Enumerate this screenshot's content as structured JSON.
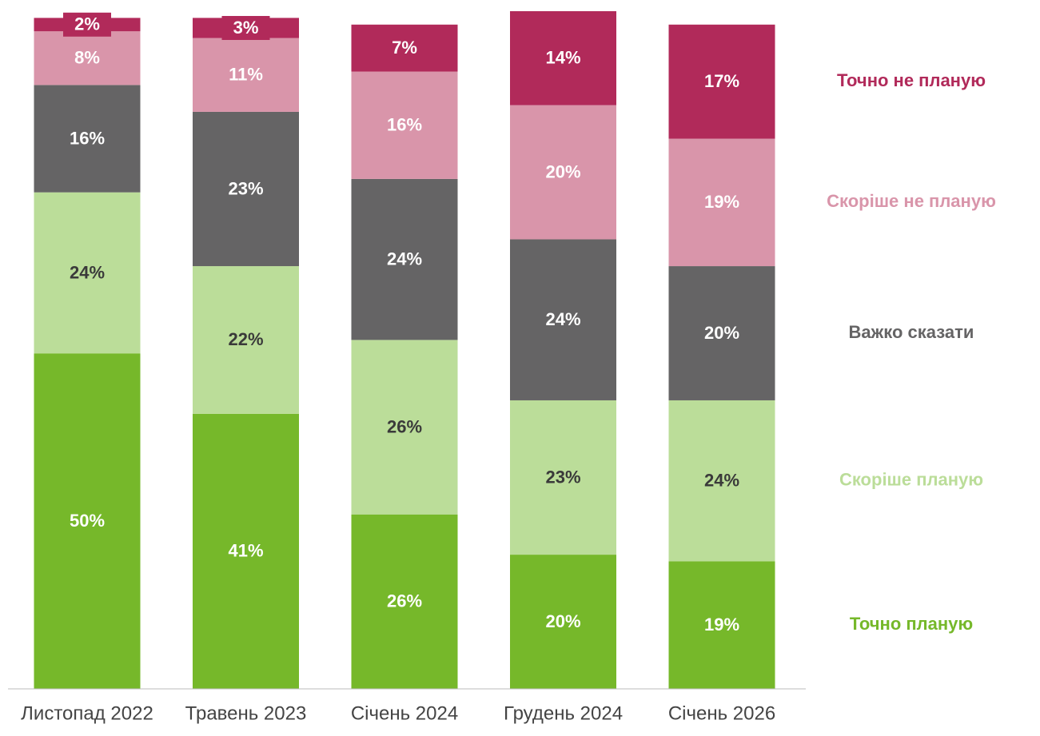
{
  "chart_data": {
    "type": "stacked_bar",
    "categories": [
      "Листопад 2022",
      "Травень 2023",
      "Січень 2024",
      "Грудень 2024",
      "Січень 2026"
    ],
    "series": [
      {
        "name": "Точно планую",
        "color": "#76b82a",
        "label_color": "#ffffff",
        "values": [
          50,
          41,
          26,
          20,
          19
        ],
        "value_labels": [
          "50%",
          "41%",
          "26%",
          "20%",
          "19%"
        ]
      },
      {
        "name": "Скоріше планую",
        "color": "#bbdd99",
        "label_color": "#3a3a3a",
        "values": [
          24,
          22,
          26,
          23,
          24
        ],
        "value_labels": [
          "24%",
          "22%",
          "26%",
          "23%",
          "24%"
        ]
      },
      {
        "name": "Важко сказати",
        "color": "#656465",
        "label_color": "#ffffff",
        "values": [
          16,
          23,
          24,
          24,
          20
        ],
        "value_labels": [
          "16%",
          "23%",
          "24%",
          "24%",
          "20%"
        ]
      },
      {
        "name": "Скоріше не планую",
        "color": "#d995aa",
        "label_color": "#ffffff",
        "values": [
          8,
          11,
          16,
          20,
          19
        ],
        "value_labels": [
          "8%",
          "11%",
          "16%",
          "20%",
          "19%"
        ]
      },
      {
        "name": "Точно не планую",
        "color": "#b12a5a",
        "label_color": "#ffffff",
        "values": [
          2,
          3,
          7,
          14,
          17
        ],
        "value_labels": [
          "2%",
          "3%",
          "7%",
          "14%",
          "17%"
        ]
      }
    ],
    "ylim": [
      0,
      101
    ],
    "legend": "right"
  }
}
